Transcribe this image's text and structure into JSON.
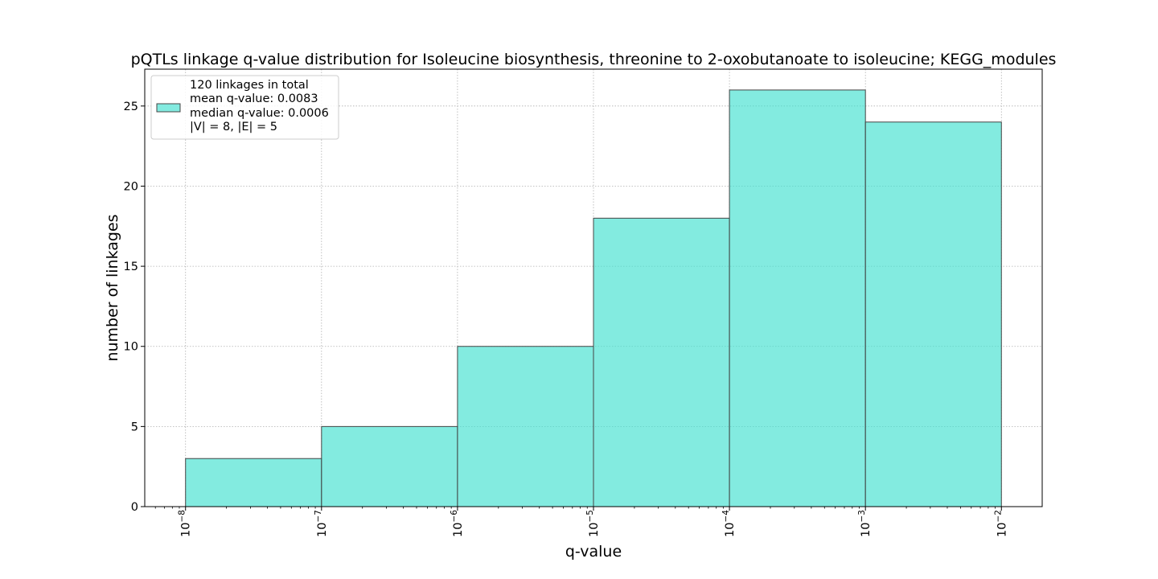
{
  "chart_data": {
    "type": "bar",
    "title": "pQTLs linkage q-value distribution for Isoleucine biosynthesis, threonine to 2-oxobutanoate to isoleucine; KEGG_modules",
    "xlabel": "q-value",
    "ylabel": "number of linkages",
    "xscale": "log",
    "bins": [
      {
        "from_exp": -8,
        "to_exp": -7,
        "value": 3
      },
      {
        "from_exp": -7,
        "to_exp": -6,
        "value": 5
      },
      {
        "from_exp": -6,
        "to_exp": -5,
        "value": 10
      },
      {
        "from_exp": -5,
        "to_exp": -4,
        "value": 18
      },
      {
        "from_exp": -4,
        "to_exp": -3,
        "value": 26
      },
      {
        "from_exp": -3,
        "to_exp": -2,
        "value": 24
      }
    ],
    "xticks": [
      {
        "exp": -8,
        "base": "10",
        "power": "−8"
      },
      {
        "exp": -7,
        "base": "10",
        "power": "−7"
      },
      {
        "exp": -6,
        "base": "10",
        "power": "−6"
      },
      {
        "exp": -5,
        "base": "10",
        "power": "−5"
      },
      {
        "exp": -4,
        "base": "10",
        "power": "−4"
      },
      {
        "exp": -3,
        "base": "10",
        "power": "−3"
      },
      {
        "exp": -2,
        "base": "10",
        "power": "−2"
      }
    ],
    "yticks": [
      0,
      5,
      10,
      15,
      20,
      25
    ],
    "xlim_exp": [
      -8.3,
      -1.7
    ],
    "ylim": [
      0,
      27.3
    ],
    "grid": true,
    "bar_color": "#40E0D0",
    "bar_edge_color": "#444444",
    "legend": {
      "placement": "top-left",
      "lines": [
        "120 linkages in total",
        "mean q-value: 0.0083",
        "median q-value: 0.0006",
        "|V| = 8, |E| = 5"
      ]
    }
  }
}
